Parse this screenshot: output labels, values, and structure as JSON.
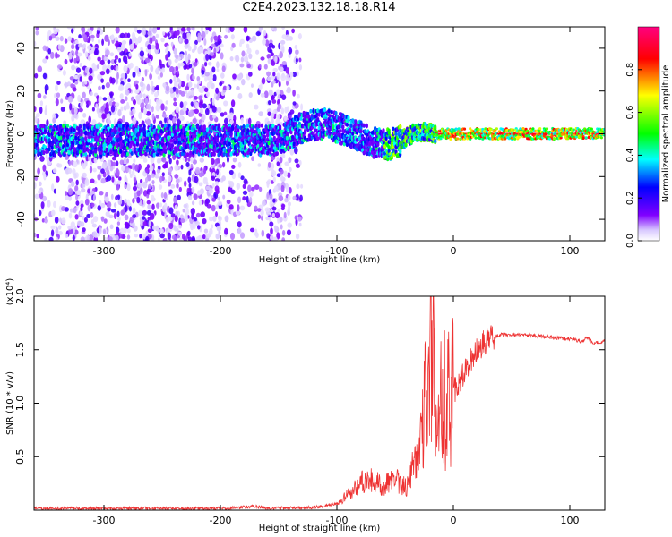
{
  "title": "C2E4.2023.132.18.18.R14",
  "chart_data": [
    {
      "type": "heatmap",
      "xlabel": "Height of straight line (km)",
      "ylabel": "Frequency (Hz)",
      "xlim": [
        -360,
        130
      ],
      "ylim": [
        -50,
        50
      ],
      "x_ticks": [
        "-300",
        "-200",
        "-100",
        "0",
        "100"
      ],
      "y_ticks": [
        "40",
        "20",
        "0",
        "-20",
        "-40"
      ],
      "colorbar": {
        "label": "Normalized spectral amplitude",
        "range": [
          0,
          1
        ],
        "ticks": [
          "0.0",
          "0.2",
          "0.4",
          "0.6",
          "0.8"
        ],
        "colors": [
          "#ffffff",
          "#8000ff",
          "#0000ff",
          "#00ffff",
          "#00ff00",
          "#ffff00",
          "#ff0000",
          "#ff00a0"
        ]
      },
      "center_frequency_track": {
        "x": [
          -360,
          -300,
          -250,
          -200,
          -150,
          -130,
          -110,
          -90,
          -70,
          -55,
          -45,
          -35,
          -25,
          -15,
          0,
          50,
          100,
          130
        ],
        "y": [
          -3,
          -3,
          -3,
          -3,
          -3,
          3,
          5,
          1,
          -4,
          -5,
          -3,
          0,
          1,
          0,
          0,
          0,
          0,
          0
        ]
      },
      "grid": false
    },
    {
      "type": "line",
      "xlabel": "Height of straight line (km)",
      "ylabel": "SNR (10 * v/v)",
      "y_multiplier": "(x10⁴)",
      "xlim": [
        -360,
        130
      ],
      "ylim": [
        0,
        2.0
      ],
      "x_ticks": [
        "-300",
        "-200",
        "-100",
        "0",
        "100"
      ],
      "y_ticks": [
        "0.5",
        "1.0",
        "1.5",
        "2.0"
      ],
      "color": "#ee3333",
      "series": [
        {
          "x": [
            -360,
            -300,
            -200,
            -170,
            -160,
            -120,
            -100,
            -85,
            -75,
            -60,
            -50,
            -40,
            -30,
            -25,
            -20,
            -17,
            -15,
            -10,
            0,
            10,
            20,
            30,
            40,
            60,
            80,
            100,
            110,
            115,
            120,
            130
          ],
          "y": [
            0.01,
            0.01,
            0.01,
            0.03,
            0.01,
            0.02,
            0.05,
            0.2,
            0.3,
            0.22,
            0.3,
            0.2,
            0.6,
            1.0,
            1.3,
            1.9,
            0.8,
            1.0,
            1.1,
            1.3,
            1.5,
            1.6,
            1.64,
            1.64,
            1.62,
            1.6,
            1.58,
            1.62,
            1.56,
            1.58
          ]
        }
      ],
      "grid": false
    }
  ]
}
